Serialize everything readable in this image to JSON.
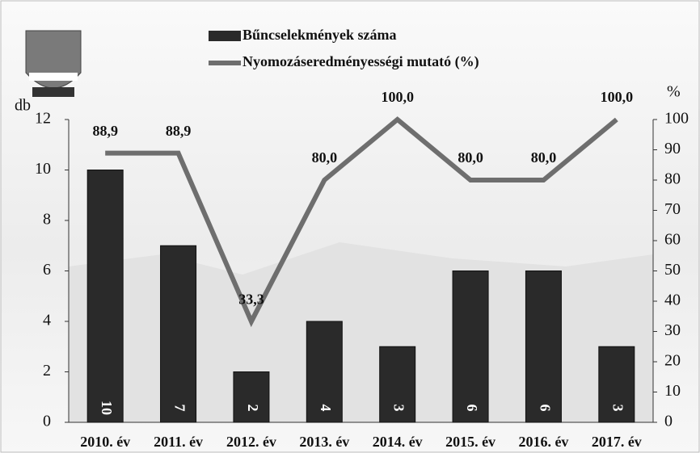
{
  "chart_data": {
    "type": "combo",
    "categories": [
      "2010. év",
      "2011. év",
      "2012. év",
      "2013. év",
      "2014. év",
      "2015. év",
      "2016. év",
      "2017. év"
    ],
    "y_label": "db",
    "y2_label": "%",
    "series": [
      {
        "name": "Bűncselekmények száma",
        "type": "bar",
        "color": "#2a2a2a",
        "values": [
          10,
          7,
          2,
          4,
          3,
          6,
          6,
          3
        ]
      },
      {
        "name": "Nyomozáseredményességi mutató (%)",
        "type": "line",
        "axis": "y2",
        "color": "#6e6e6e",
        "values": [
          88.9,
          88.9,
          33.3,
          80.0,
          100.0,
          80.0,
          80.0,
          100.0
        ],
        "value_labels": [
          "88,9",
          "88,9",
          "33,3",
          "80,0",
          "100,0",
          "80,0",
          "80,0",
          "100,0"
        ]
      }
    ],
    "ylim": [
      0,
      12
    ],
    "yticks": [
      0,
      2,
      4,
      6,
      8,
      10,
      12
    ],
    "y2lim": [
      0,
      100
    ],
    "y2ticks": [
      0,
      10,
      20,
      30,
      40,
      50,
      60,
      70,
      80,
      90,
      100
    ]
  }
}
